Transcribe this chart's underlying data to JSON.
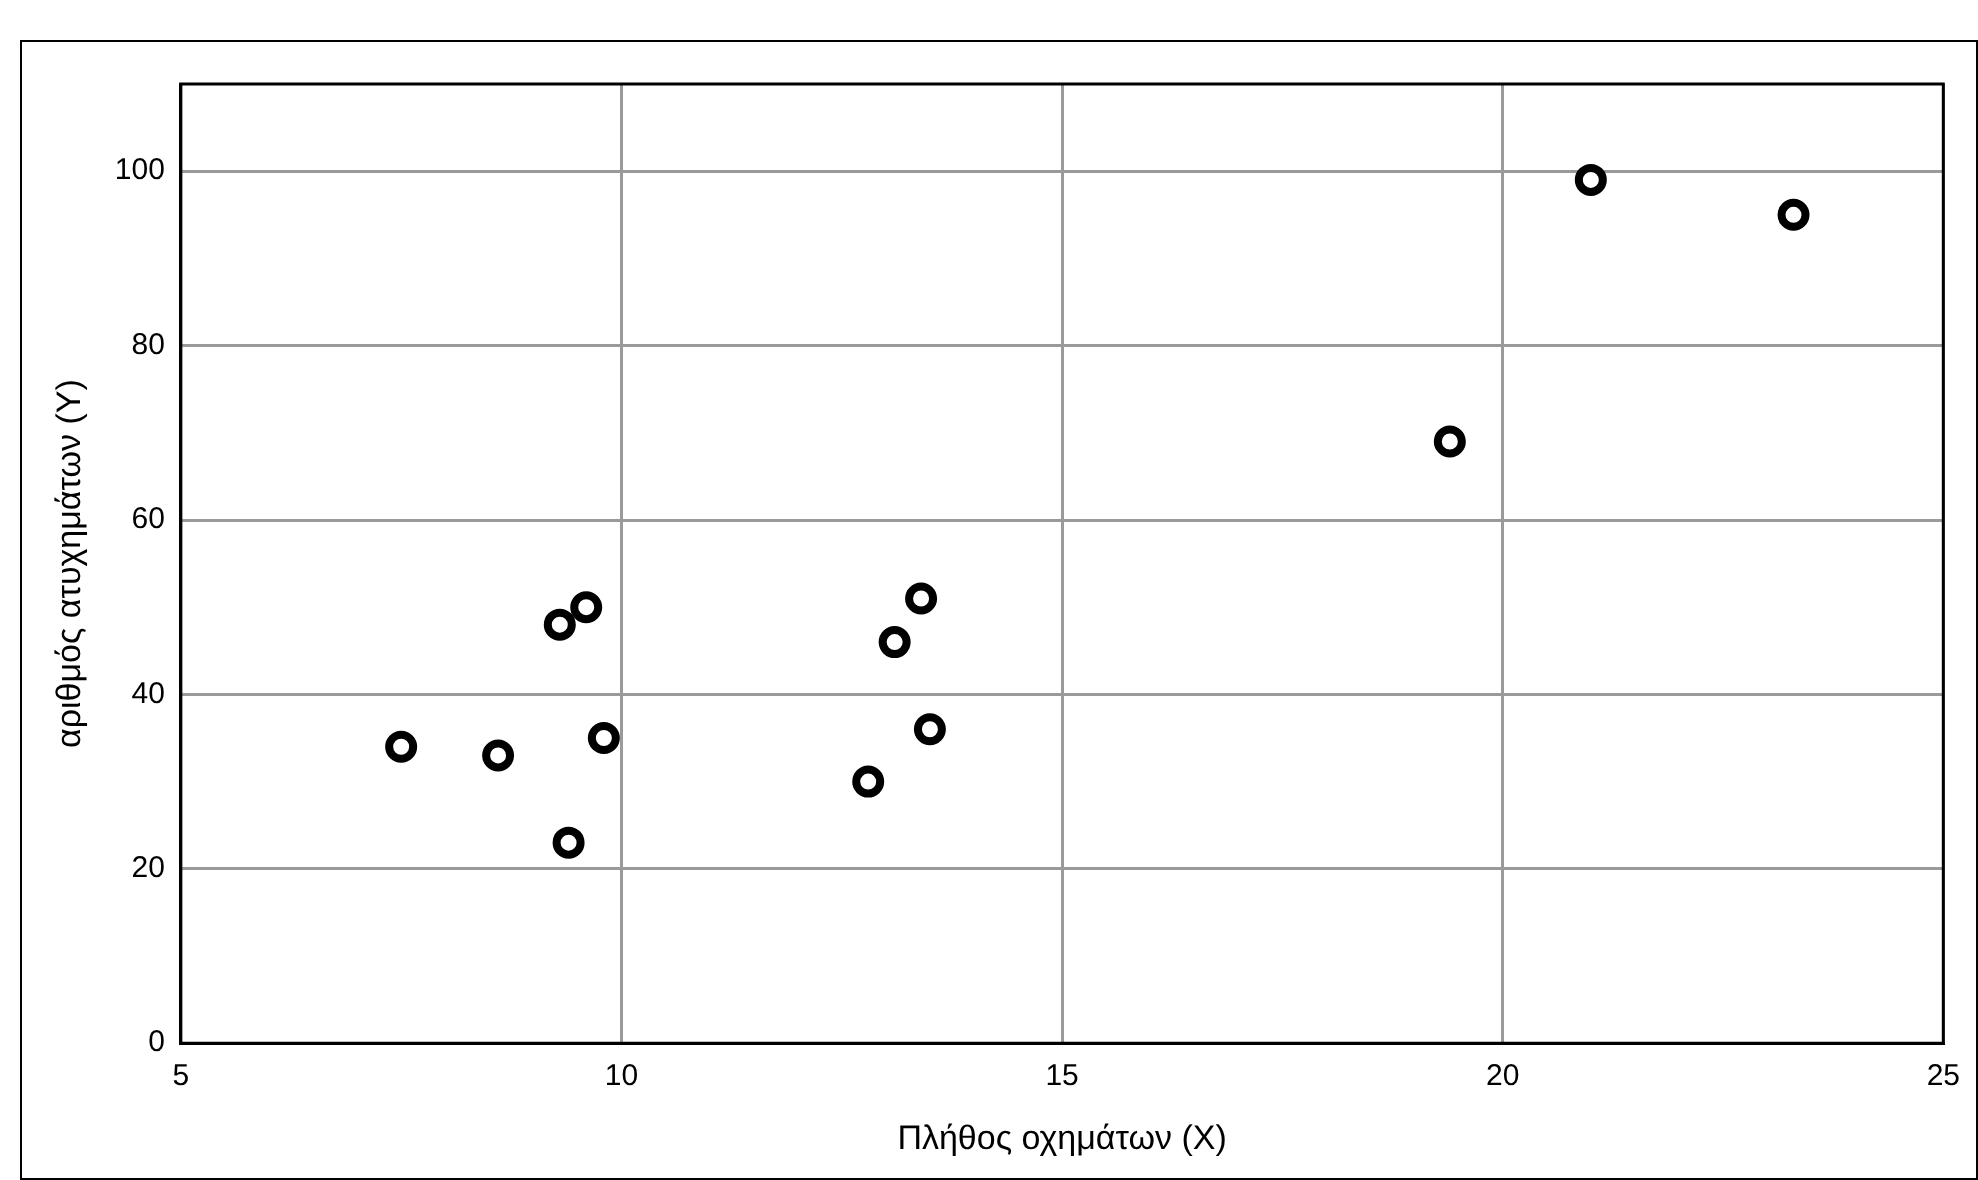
{
  "chart_data": {
    "type": "scatter",
    "xlabel": "Πλήθος οχημάτων (X)",
    "ylabel": "αριθμός ατυχημάτων (Y)",
    "x": [
      7.5,
      8.6,
      9.3,
      9.6,
      9.4,
      9.8,
      12.8,
      13.1,
      13.4,
      13.5,
      19.4,
      21.0,
      23.3
    ],
    "values": [
      34,
      33,
      48,
      50,
      23,
      35,
      30,
      46,
      51,
      36,
      69,
      99,
      95
    ],
    "color": "#000000",
    "marker": "circle",
    "xlim": [
      5,
      25
    ],
    "xticks": [
      5,
      10,
      15,
      20,
      25
    ],
    "ylim": [
      0,
      110
    ],
    "yticks": [
      0,
      20,
      40,
      60,
      80,
      100
    ],
    "grid": true,
    "legend": false
  }
}
